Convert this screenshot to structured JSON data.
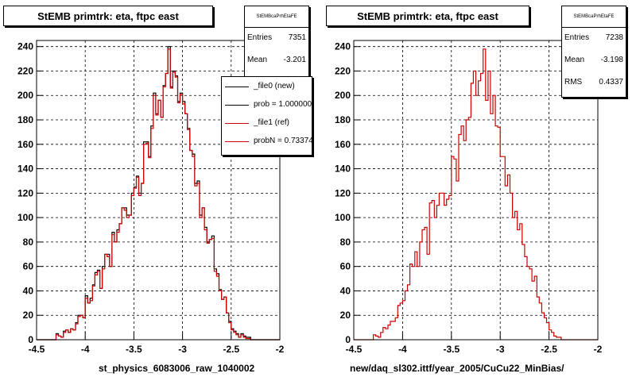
{
  "chart_data": [
    {
      "type": "histogram",
      "title": "StEMB primtrk: eta, ftpc east",
      "xlabel": "st_physics_6083006_raw_1040002",
      "xlim": [
        -4.5,
        -2.0
      ],
      "ylim": [
        0,
        245
      ],
      "xticks": [
        "-4.5",
        "-4",
        "-3.5",
        "-3",
        "-2.5",
        "-2"
      ],
      "yticks": [
        "0",
        "20",
        "40",
        "60",
        "80",
        "100",
        "120",
        "140",
        "160",
        "180",
        "200",
        "220",
        "240"
      ],
      "grid": true,
      "bin_edges_start": -4.5,
      "bin_width": 0.025,
      "series": [
        {
          "name": "_file0 (new)",
          "color": "#000000",
          "values": [
            0,
            0,
            0,
            0,
            0,
            0,
            0,
            0,
            5,
            3,
            2,
            7,
            8,
            6,
            9,
            8,
            14,
            20,
            20,
            18,
            36,
            30,
            34,
            45,
            55,
            57,
            42,
            60,
            70,
            70,
            60,
            88,
            80,
            90,
            95,
            108,
            108,
            102,
            102,
            120,
            125,
            134,
            120,
            128,
            162,
            162,
            150,
            175,
            202,
            185,
            196,
            182,
            208,
            218,
            240,
            207,
            220,
            216,
            195,
            202,
            195,
            185,
            173,
            155,
            152,
            128,
            130,
            102,
            108,
            92,
            80,
            82,
            85,
            58,
            54,
            41,
            33,
            35,
            22,
            15,
            9,
            7,
            5,
            2,
            5,
            3,
            2,
            2,
            0,
            0,
            0,
            0,
            0,
            0,
            0,
            0,
            0,
            0,
            0,
            0
          ]
        },
        {
          "name": "_file1 (ref)",
          "color": "#cc0000",
          "values": [
            0,
            0,
            0,
            0,
            0,
            0,
            0,
            0,
            4,
            3,
            2,
            6,
            8,
            6,
            9,
            8,
            13,
            19,
            20,
            18,
            34,
            30,
            32,
            44,
            53,
            56,
            42,
            58,
            70,
            68,
            60,
            86,
            80,
            88,
            95,
            108,
            106,
            100,
            102,
            118,
            124,
            133,
            118,
            128,
            160,
            161,
            149,
            173,
            200,
            184,
            196,
            182,
            207,
            218,
            238,
            206,
            219,
            215,
            194,
            201,
            193,
            185,
            172,
            155,
            150,
            126,
            128,
            100,
            108,
            90,
            79,
            82,
            83,
            56,
            52,
            40,
            33,
            35,
            22,
            14,
            8,
            6,
            4,
            2,
            4,
            2,
            1,
            1,
            0,
            0,
            0,
            0,
            0,
            0,
            0,
            0,
            0,
            0,
            0,
            0
          ]
        }
      ],
      "stats": {
        "header": "StEMBcaPrhEtaFE",
        "rows": [
          {
            "key": "Entries",
            "value": "7351"
          },
          {
            "key": "Mean",
            "value": "-3.201"
          }
        ]
      },
      "legend": [
        {
          "label": "_file0 (new)",
          "color": "#000000"
        },
        {
          "label": "prob = 1.000000",
          "color": "#000000"
        },
        {
          "label": "_file1 (ref)",
          "color": "#cc0000"
        },
        {
          "label": "probN = 0.733742",
          "color": "#cc0000"
        }
      ]
    },
    {
      "type": "histogram",
      "title": "StEMB primtrk: eta, ftpc east",
      "xlabel": "new/daq_sl302.ittf/year_2005/CuCu22_MinBias/",
      "xlim": [
        -4.5,
        -2.0
      ],
      "ylim": [
        0,
        245
      ],
      "xticks": [
        "-4.5",
        "-4",
        "-3.5",
        "-3",
        "-2.5",
        "-2"
      ],
      "yticks": [
        "0",
        "20",
        "40",
        "60",
        "80",
        "100",
        "120",
        "140",
        "160",
        "180",
        "200",
        "220",
        "240"
      ],
      "grid": true,
      "bin_edges_start": -4.5,
      "bin_width": 0.025,
      "series": [
        {
          "name": "",
          "color": "#cc0000",
          "values": [
            0,
            0,
            0,
            0,
            0,
            0,
            0,
            0,
            4,
            3,
            2,
            6,
            10,
            9,
            12,
            15,
            15,
            18,
            28,
            30,
            32,
            40,
            45,
            62,
            60,
            72,
            60,
            80,
            90,
            92,
            70,
            112,
            114,
            100,
            110,
            120,
            120,
            110,
            115,
            118,
            150,
            148,
            130,
            168,
            175,
            163,
            180,
            182,
            210,
            220,
            200,
            212,
            218,
            238,
            196,
            220,
            185,
            200,
            175,
            174,
            150,
            150,
            126,
            135,
            120,
            100,
            105,
            90,
            95,
            78,
            68,
            60,
            58,
            48,
            52,
            35,
            30,
            22,
            18,
            14,
            8,
            6,
            3,
            2,
            2,
            0,
            0,
            0,
            0,
            0,
            0,
            0,
            0,
            0,
            0,
            0,
            0,
            0,
            0,
            0
          ]
        }
      ],
      "stats": {
        "header": "StEMBcaPrhEtaFE",
        "rows": [
          {
            "key": "Entries",
            "value": "7238"
          },
          {
            "key": "Mean",
            "value": "-3.198"
          },
          {
            "key": "RMS",
            "value": "0.4337"
          }
        ]
      }
    }
  ]
}
